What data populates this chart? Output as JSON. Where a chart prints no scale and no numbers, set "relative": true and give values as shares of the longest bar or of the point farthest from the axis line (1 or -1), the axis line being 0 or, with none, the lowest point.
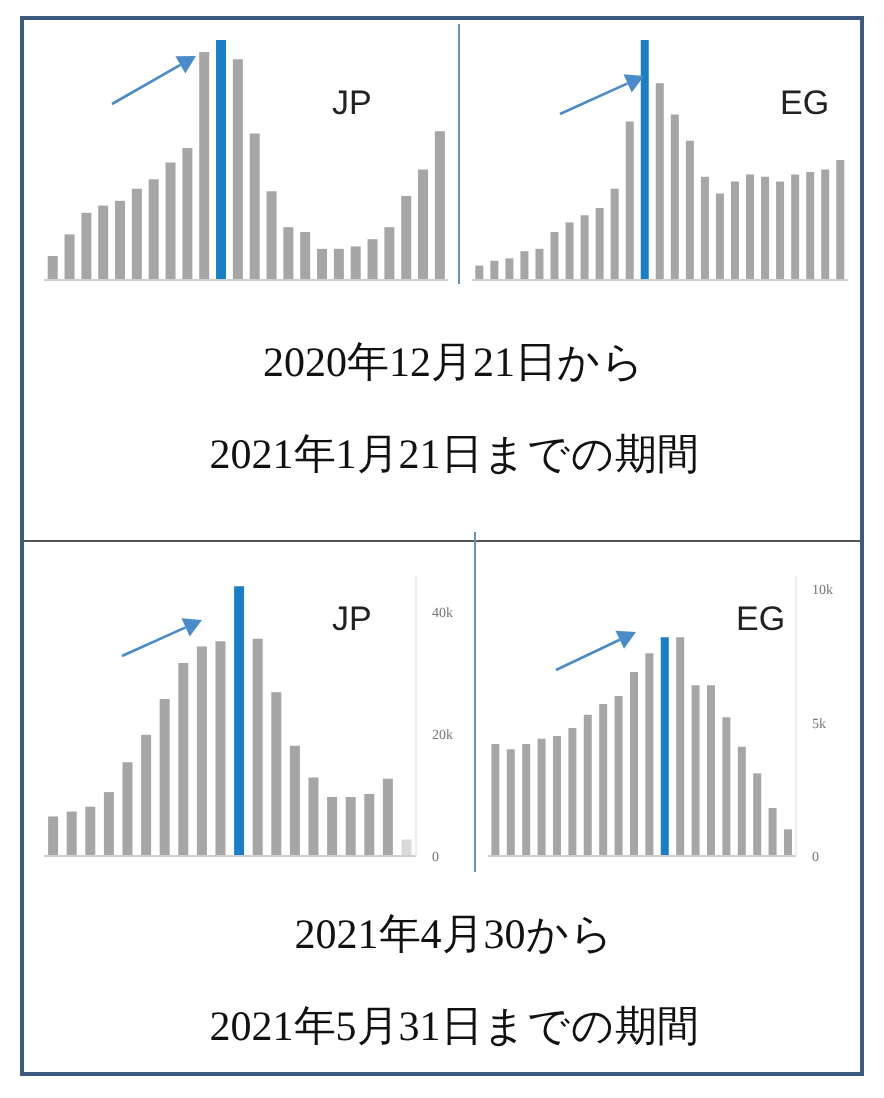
{
  "chart_data": [
    {
      "type": "bar",
      "title": "JP",
      "relative": true,
      "tick_labels": false,
      "categories": [
        null,
        null,
        null,
        null,
        null,
        null,
        null,
        null,
        null,
        null,
        null,
        null,
        null,
        null,
        null,
        null,
        null,
        null,
        null,
        null,
        null,
        null,
        null,
        null
      ],
      "values": [
        0.1,
        0.19,
        0.28,
        0.31,
        0.33,
        0.38,
        0.42,
        0.49,
        0.55,
        0.95,
        1,
        0.92,
        0.61,
        0.37,
        0.22,
        0.2,
        0.13,
        0.13,
        0.14,
        0.17,
        0.22,
        0.35,
        0.46,
        0.62
      ],
      "colors": [
        "#a6a6a6",
        "#a6a6a6",
        "#a6a6a6",
        "#a6a6a6",
        "#a6a6a6",
        "#a6a6a6",
        "#a6a6a6",
        "#a6a6a6",
        "#a6a6a6",
        "#a6a6a6",
        "#1a7fc7",
        "#a6a6a6",
        "#a6a6a6",
        "#a6a6a6",
        "#a6a6a6",
        "#a6a6a6",
        "#a6a6a6",
        "#a6a6a6",
        "#a6a6a6",
        "#a6a6a6",
        "#a6a6a6",
        "#a6a6a6",
        "#a6a6a6",
        "#a6a6a6"
      ],
      "annotations": [
        "2020年12月21日から",
        "2021年1月21日までの期間"
      ]
    },
    {
      "type": "bar",
      "title": "EG",
      "relative": true,
      "tick_labels": false,
      "categories": [
        null,
        null,
        null,
        null,
        null,
        null,
        null,
        null,
        null,
        null,
        null,
        null,
        null,
        null,
        null,
        null,
        null,
        null,
        null,
        null,
        null,
        null,
        null,
        null,
        null
      ],
      "values": [
        0.06,
        0.08,
        0.09,
        0.12,
        0.13,
        0.2,
        0.24,
        0.27,
        0.3,
        0.38,
        0.66,
        1,
        0.82,
        0.69,
        0.58,
        0.43,
        0.36,
        0.41,
        0.44,
        0.43,
        0.41,
        0.44,
        0.45,
        0.46,
        0.5
      ],
      "colors": [
        "#a6a6a6",
        "#a6a6a6",
        "#a6a6a6",
        "#a6a6a6",
        "#a6a6a6",
        "#a6a6a6",
        "#a6a6a6",
        "#a6a6a6",
        "#a6a6a6",
        "#a6a6a6",
        "#a6a6a6",
        "#1a7fc7",
        "#a6a6a6",
        "#a6a6a6",
        "#a6a6a6",
        "#a6a6a6",
        "#a6a6a6",
        "#a6a6a6",
        "#a6a6a6",
        "#a6a6a6",
        "#a6a6a6",
        "#a6a6a6",
        "#a6a6a6",
        "#a6a6a6",
        "#a6a6a6"
      ]
    },
    {
      "type": "bar",
      "title": "JP",
      "tick_labels": "y",
      "ylim": [
        0,
        46000
      ],
      "yticks": [
        0,
        {
          "value": 20000,
          "label": "20k"
        },
        {
          "value": 40000,
          "label": "40k"
        }
      ],
      "categories": [
        null,
        null,
        null,
        null,
        null,
        null,
        null,
        null,
        null,
        null,
        null,
        null,
        null,
        null,
        null,
        null,
        null,
        null,
        null,
        null
      ],
      "values": [
        6500,
        7300,
        8100,
        10500,
        15400,
        19900,
        25800,
        31700,
        34400,
        35300,
        44300,
        35700,
        26900,
        18100,
        12900,
        9700,
        9700,
        10200,
        12700,
        2700
      ],
      "colors": [
        "#a6a6a6",
        "#a6a6a6",
        "#a6a6a6",
        "#a6a6a6",
        "#a6a6a6",
        "#a6a6a6",
        "#a6a6a6",
        "#a6a6a6",
        "#a6a6a6",
        "#a6a6a6",
        "#1a7fc7",
        "#a6a6a6",
        "#a6a6a6",
        "#a6a6a6",
        "#a6a6a6",
        "#a6a6a6",
        "#a6a6a6",
        "#a6a6a6",
        "#a6a6a6",
        "#d9d9d9"
      ],
      "annotations": [
        "2021年4月30から",
        "2021年5月31日までの期間"
      ]
    },
    {
      "type": "bar",
      "title": "EG",
      "tick_labels": "y",
      "ylim": [
        0,
        10500
      ],
      "yticks": [
        0,
        {
          "value": 5000,
          "label": "5k"
        },
        {
          "value": 10000,
          "label": "10k"
        }
      ],
      "categories": [
        null,
        null,
        null,
        null,
        null,
        null,
        null,
        null,
        null,
        null,
        null,
        null,
        null,
        null,
        null,
        null,
        null,
        null,
        null,
        null
      ],
      "values": [
        4200,
        4000,
        4200,
        4400,
        4500,
        4800,
        5300,
        5700,
        6000,
        6900,
        7600,
        8200,
        8200,
        6400,
        6400,
        5200,
        4100,
        3100,
        1800,
        1000
      ],
      "colors": [
        "#a6a6a6",
        "#a6a6a6",
        "#a6a6a6",
        "#a6a6a6",
        "#a6a6a6",
        "#a6a6a6",
        "#a6a6a6",
        "#a6a6a6",
        "#a6a6a6",
        "#a6a6a6",
        "#a6a6a6",
        "#1a7fc7",
        "#a6a6a6",
        "#a6a6a6",
        "#a6a6a6",
        "#a6a6a6",
        "#a6a6a6",
        "#a6a6a6",
        "#a6a6a6",
        "#a6a6a6"
      ]
    }
  ]
}
